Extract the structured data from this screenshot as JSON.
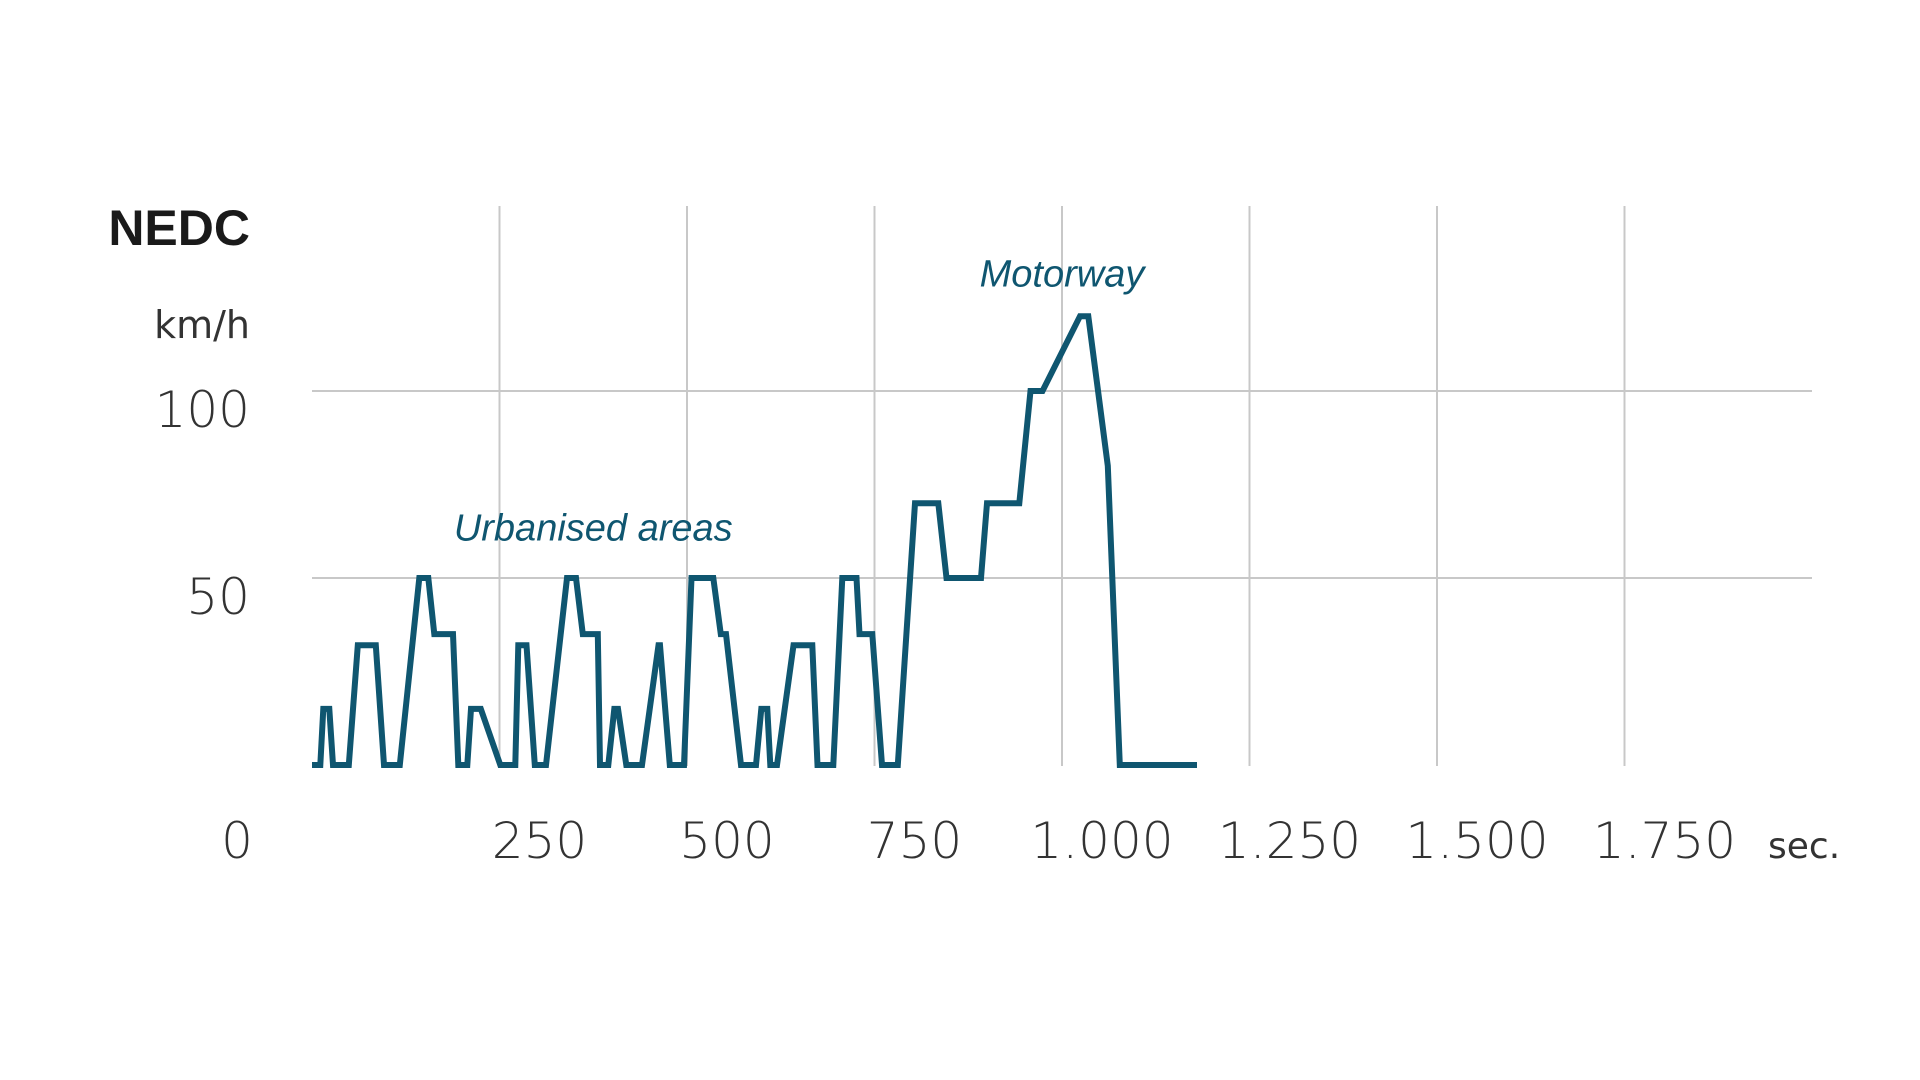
{
  "chart_data": {
    "type": "line",
    "title": "NEDC",
    "ylabel": "km/h",
    "xlabel": "sec.",
    "xlim": [
      0,
      2000
    ],
    "ylim": [
      0,
      120
    ],
    "x_ticks": [
      250,
      500,
      750,
      1000,
      1250,
      1500,
      1750
    ],
    "x_tick_labels": [
      "250",
      "500",
      "750",
      "1.000",
      "1.250",
      "1.500",
      "1.750"
    ],
    "origin_label": "0",
    "y_ticks": [
      50,
      100
    ],
    "y_tick_labels": [
      "50",
      "100"
    ],
    "grid": true,
    "annotations": [
      {
        "text": "Urbanised areas",
        "x": 375,
        "y": 60
      },
      {
        "text": "Motorway",
        "x": 1000,
        "y": 128
      }
    ],
    "line_color": "#0f5670",
    "grid_color": "#c8c8c8",
    "series": [
      {
        "x": [
          0,
          11,
          15,
          23,
          28,
          49,
          61,
          85,
          96,
          117,
          143,
          155,
          163,
          188,
          195,
          203,
          207,
          212,
          225,
          251,
          271,
          275,
          286,
          297,
          312,
          340,
          352,
          361,
          381,
          384,
          395,
          403,
          408,
          419,
          440,
          462,
          464,
          477,
          496,
          506,
          535,
          545,
          552,
          572,
          592,
          599,
          607,
          611,
          620,
          642,
          667,
          674,
          695,
          707,
          726,
          730,
          747,
          760,
          781,
          804,
          835,
          846,
          892,
          900,
          943,
          958,
          974,
          1024,
          1035,
          1061,
          1077,
          1094,
          1117,
          1130,
          1180
        ],
        "y": [
          0,
          0,
          15,
          15,
          0,
          0,
          32,
          32,
          0,
          0,
          50,
          50,
          35,
          35,
          0,
          0,
          0,
          15,
          15,
          0,
          0,
          32,
          32,
          0,
          0,
          50,
          50,
          35,
          35,
          0,
          0,
          15,
          15,
          0,
          0,
          32,
          32,
          0,
          0,
          50,
          50,
          35,
          35,
          0,
          0,
          15,
          15,
          0,
          0,
          32,
          32,
          0,
          0,
          50,
          50,
          35,
          35,
          0,
          0,
          70,
          70,
          50,
          50,
          70,
          70,
          100,
          100,
          120,
          120,
          80,
          0,
          0,
          0,
          0,
          0
        ]
      }
    ]
  }
}
